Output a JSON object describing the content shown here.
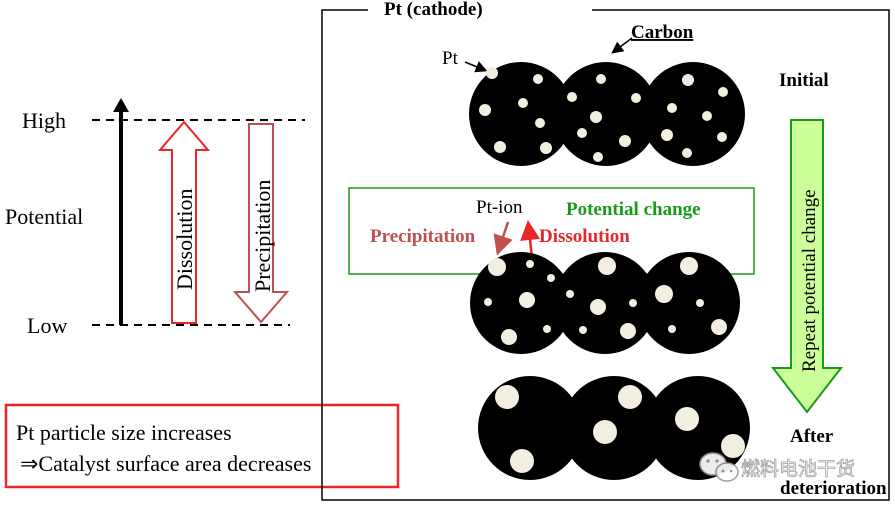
{
  "left_panel": {
    "high_label": "High",
    "low_label": "Low",
    "potential_label": "Potential",
    "dissolution_arrow_label": "Dissolution",
    "precipitation_arrow_label": "Precipitation"
  },
  "summary_box": {
    "line1": "Pt particle size increases",
    "line2": "⇒Catalyst surface area decreases"
  },
  "cathode_panel": {
    "title": "Pt (cathode)",
    "carbon_label": "Carbon",
    "pt_label": "Pt",
    "initial_label": "Initial",
    "after_label_line1": "After",
    "after_label_line2": "deterioration",
    "repeat_label": "Repeat potential change",
    "potential_change_box": {
      "pt_ion_label": "Pt-ion",
      "potential_change_label": "Potential change",
      "precipitation_label": "Precipitation",
      "dissolution_label": "Dissolution"
    }
  },
  "watermark": {
    "text": "燃料电池干货"
  },
  "colors": {
    "red": "#e8272a",
    "dark_red": "#c0504d",
    "green": "#1a9a1a",
    "light_green": "#ccff99",
    "particle": "#f2eee0"
  }
}
